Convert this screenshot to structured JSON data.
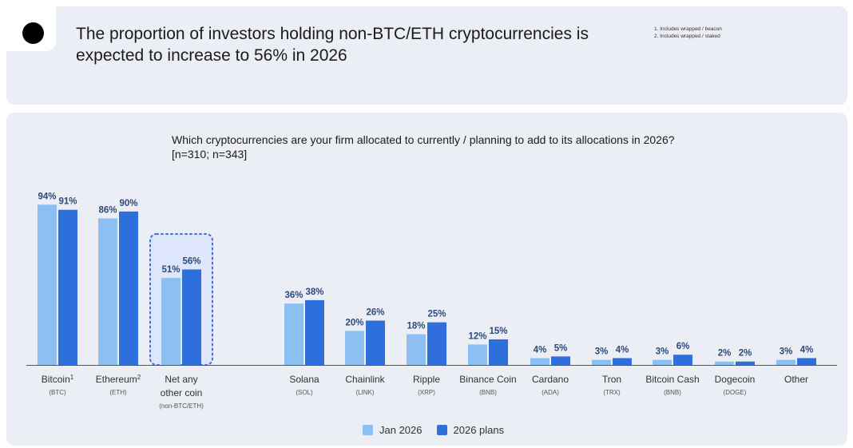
{
  "header": {
    "title": "The proportion of investors holding non-BTC/ETH cryptocurrencies is expected to increase to 56% in 2026",
    "footnotes": [
      "1. Includes wrapped / beacon",
      "2. Includes wrapped / staked"
    ]
  },
  "question": {
    "text": "Which cryptocurrencies are your firm allocated to currently / planning to add to its allocations in 2026?",
    "sample": "[n=310; n=343]"
  },
  "legend": [
    {
      "label": "Jan 2026",
      "color": "#8cc0f2"
    },
    {
      "label": "2026 plans",
      "color": "#2f6fdc"
    }
  ],
  "chart_data": {
    "type": "bar",
    "categories": [
      "Bitcoin",
      "Ethereum",
      "Net any other coin",
      "Solana",
      "Chainlink",
      "Ripple",
      "Binance Coin",
      "Cardano",
      "Tron",
      "Bitcoin Cash",
      "Dogecoin",
      "Other"
    ],
    "category_subs": [
      "(BTC)",
      "(ETH)",
      "(non-BTC/ETH)",
      "(SOL)",
      "(LINK)",
      "(XRP)",
      "(BNB)",
      "(ADA)",
      "(TRX)",
      "(BNB)",
      "(DOGE)",
      ""
    ],
    "category_sups": [
      "1",
      "2",
      "",
      "",
      "",
      "",
      "",
      "",
      "",
      "",
      "",
      ""
    ],
    "series": [
      {
        "name": "Jan 2026",
        "values": [
          94,
          86,
          51,
          36,
          20,
          18,
          12,
          4,
          3,
          3,
          2,
          3
        ]
      },
      {
        "name": "2026 plans",
        "values": [
          91,
          90,
          56,
          38,
          26,
          25,
          15,
          5,
          4,
          6,
          2,
          4
        ]
      }
    ],
    "value_suffix": "%",
    "highlight_category": "Net any other coin",
    "ylim": [
      0,
      100
    ],
    "colors": [
      "#8cc0f2",
      "#2f6fdc"
    ]
  }
}
